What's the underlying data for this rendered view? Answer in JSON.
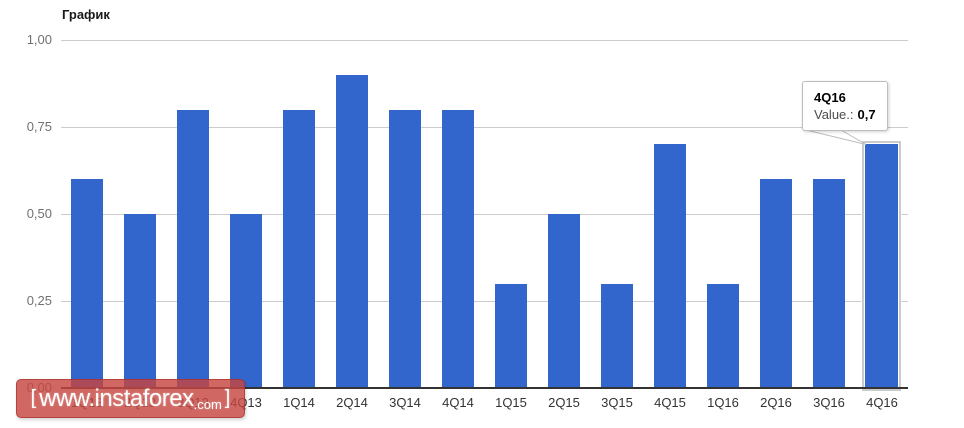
{
  "title": "График",
  "chart_data": {
    "type": "bar",
    "title": "График",
    "categories": [
      "1Q13",
      "2Q13",
      "3Q13",
      "4Q13",
      "1Q14",
      "2Q14",
      "3Q14",
      "4Q14",
      "1Q15",
      "2Q15",
      "3Q15",
      "4Q15",
      "1Q16",
      "2Q16",
      "3Q16",
      "4Q16"
    ],
    "values": [
      0.6,
      0.5,
      0.8,
      0.5,
      0.8,
      0.9,
      0.8,
      0.8,
      0.3,
      0.5,
      0.3,
      0.7,
      0.3,
      0.6,
      0.6,
      0.7
    ],
    "xlabel": "",
    "ylabel": "",
    "ylim": [
      0,
      1.0
    ],
    "yticks": [
      "1,00",
      "0,75",
      "0,50",
      "0,25",
      "0,00"
    ],
    "ytick_values": [
      1.0,
      0.75,
      0.5,
      0.25,
      0.0
    ],
    "grid": true,
    "legend_position": "none",
    "bar_color": "#3366cc",
    "highlighted_index": 15,
    "highlighted_category": "4Q16"
  },
  "tooltip": {
    "category": "4Q16",
    "value_label": "Value.:",
    "value": "0,7"
  },
  "watermark": {
    "bracket_left": "[",
    "text": "www.instaforex",
    "suffix": ".com",
    "bracket_right": "]",
    "bg_color": "#c64540"
  }
}
